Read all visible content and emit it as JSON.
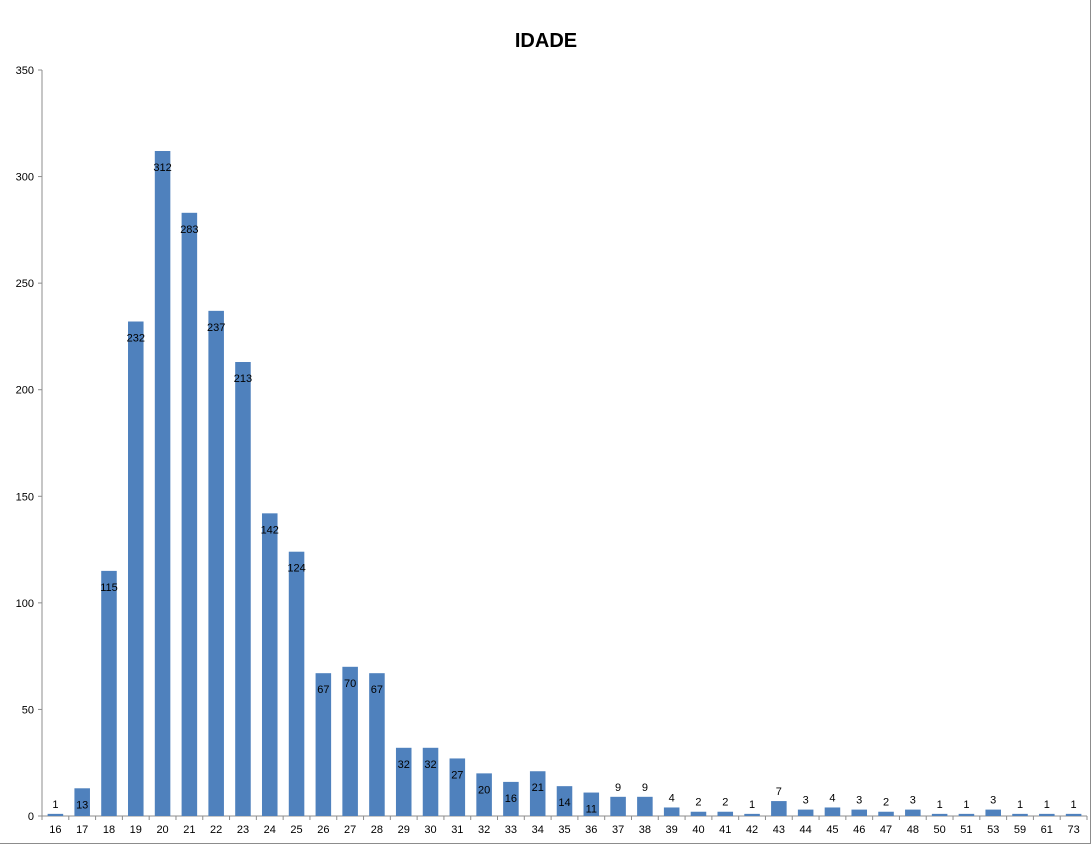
{
  "chart_data": {
    "type": "bar",
    "title": "IDADE",
    "xlabel": "",
    "ylabel": "",
    "ylim": [
      0,
      350
    ],
    "yticks": [
      0,
      50,
      100,
      150,
      200,
      250,
      300,
      350
    ],
    "grid": false,
    "legend": "none",
    "bar_color": "#4f81bd",
    "categories": [
      "16",
      "17",
      "18",
      "19",
      "20",
      "21",
      "22",
      "23",
      "24",
      "25",
      "26",
      "27",
      "28",
      "29",
      "30",
      "31",
      "32",
      "33",
      "34",
      "35",
      "36",
      "37",
      "38",
      "39",
      "40",
      "41",
      "42",
      "43",
      "44",
      "45",
      "46",
      "47",
      "48",
      "50",
      "51",
      "53",
      "59",
      "61",
      "73"
    ],
    "values": [
      1,
      13,
      115,
      232,
      312,
      283,
      237,
      213,
      142,
      124,
      67,
      70,
      67,
      32,
      32,
      27,
      20,
      16,
      21,
      14,
      11,
      9,
      9,
      4,
      2,
      2,
      1,
      7,
      3,
      4,
      3,
      2,
      3,
      1,
      1,
      3,
      1,
      1,
      1
    ]
  }
}
